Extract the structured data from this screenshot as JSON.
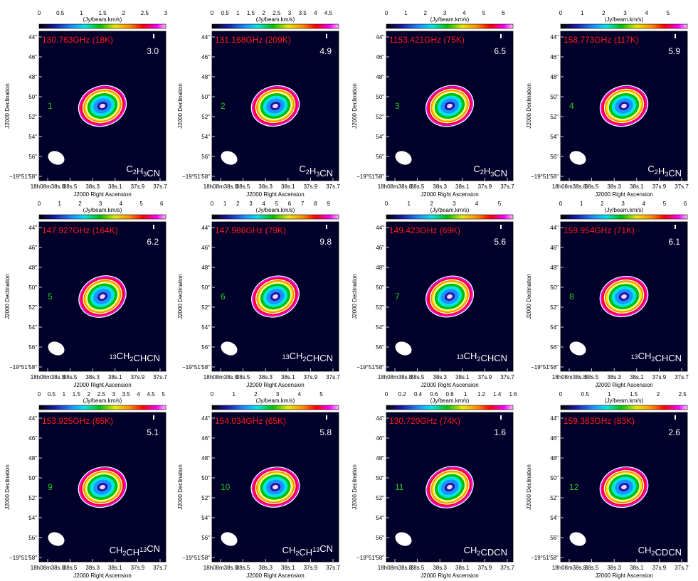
{
  "figure": {
    "cbar_unit": "(Jy/beam.km/s)",
    "xlabel": "J2000 Right Ascension",
    "ylabel": "J2000 Declination",
    "x_ticks": [
      "18h08m38s.8",
      "38s.5",
      "38s.3",
      "38s.1",
      "37s.9",
      "37s.7"
    ],
    "y_ticks": [
      "44\"",
      "46\"",
      "48\"",
      "50\"",
      "52\"",
      "54\"",
      "56\"",
      "−19°51′58\""
    ],
    "colors": {
      "frequency_text": "#ff1a1a",
      "panel_number": "#22cc22",
      "contour": "#ffffff",
      "map_background": "#00002a"
    }
  },
  "chart_data": [
    {
      "type": "heatmap",
      "panel": "1",
      "freq_label": "130.763GHz (18K)",
      "peak_label": "3.0",
      "molecule": [
        "C",
        "2",
        "H",
        "3",
        "CN"
      ],
      "mol_style": "sub",
      "colorbar_ticks": [
        "0",
        "0.5",
        "1",
        "1.5",
        "2",
        "2.5",
        "3"
      ],
      "vmax": 3.0,
      "colorbar_range": [
        0,
        3.0
      ]
    },
    {
      "type": "heatmap",
      "panel": "2",
      "freq_label": "131.168GHz (209K)",
      "peak_label": "4.9",
      "molecule": [
        "C",
        "2",
        "H",
        "3",
        "CN"
      ],
      "mol_style": "sub",
      "colorbar_ticks": [
        "0",
        "0.5",
        "1",
        "1.5",
        "2",
        "2.5",
        "3",
        "3.5",
        "4",
        "4.5"
      ],
      "vmax": 4.9,
      "colorbar_range": [
        0,
        4.9
      ]
    },
    {
      "type": "heatmap",
      "panel": "3",
      "freq_label": "1153.421GHz (75K)",
      "peak_label": "6.5",
      "molecule": [
        "C",
        "2",
        "H",
        "3",
        "CN"
      ],
      "mol_style": "sub",
      "colorbar_ticks": [
        "0",
        "1",
        "2",
        "3",
        "4",
        "5",
        "6"
      ],
      "vmax": 6.5,
      "colorbar_range": [
        0,
        6.5
      ]
    },
    {
      "type": "heatmap",
      "panel": "4",
      "freq_label": "158.773GHz (117K)",
      "peak_label": "5.9",
      "molecule": [
        "C",
        "2",
        "H",
        "3",
        "CN"
      ],
      "mol_style": "sub",
      "colorbar_ticks": [
        "0",
        "1",
        "2",
        "3",
        "4",
        "5"
      ],
      "vmax": 5.9,
      "colorbar_range": [
        0,
        5.9
      ]
    },
    {
      "type": "heatmap",
      "panel": "5",
      "freq_label": "147.927GHz (164K)",
      "peak_label": "6.2",
      "molecule": [
        "13",
        "CH",
        "2",
        "CHCN"
      ],
      "mol_style": "sup",
      "colorbar_ticks": [
        "0",
        "1",
        "2",
        "3",
        "4",
        "5",
        "6"
      ],
      "vmax": 6.2,
      "colorbar_range": [
        0,
        6.2
      ]
    },
    {
      "type": "heatmap",
      "panel": "6",
      "freq_label": "147.986GHz (79K)",
      "peak_label": "9.8",
      "molecule": [
        "13",
        "CH",
        "2",
        "CHCN"
      ],
      "mol_style": "sup",
      "colorbar_ticks": [
        "0",
        "1",
        "2",
        "3",
        "4",
        "5",
        "6",
        "7",
        "8",
        "9"
      ],
      "vmax": 9.8,
      "colorbar_range": [
        0,
        9.8
      ]
    },
    {
      "type": "heatmap",
      "panel": "7",
      "freq_label": "149.423GHz (69K)",
      "peak_label": "5.6",
      "molecule": [
        "13",
        "CH",
        "2",
        "CHCN"
      ],
      "mol_style": "sup",
      "colorbar_ticks": [
        "0",
        "1",
        "2",
        "3",
        "4",
        "5"
      ],
      "vmax": 5.6,
      "colorbar_range": [
        0,
        5.6
      ]
    },
    {
      "type": "heatmap",
      "panel": "8",
      "freq_label": "159.954GHz (71K)",
      "peak_label": "6.1",
      "molecule": [
        "13",
        "CH",
        "2",
        "CHCN"
      ],
      "mol_style": "sup",
      "colorbar_ticks": [
        "0",
        "1",
        "2",
        "3",
        "4",
        "5",
        "6"
      ],
      "vmax": 6.1,
      "colorbar_range": [
        0,
        6.1
      ]
    },
    {
      "type": "heatmap",
      "panel": "9",
      "freq_label": "153.925GHz (65K)",
      "peak_label": "5.1",
      "molecule": [
        "CH",
        "2",
        "CH",
        "13",
        "CN"
      ],
      "mol_style": "mix",
      "colorbar_ticks": [
        "0",
        "0.5",
        "1",
        "1.5",
        "2",
        "2.5",
        "3",
        "3.5",
        "4",
        "4.5",
        "5"
      ],
      "vmax": 5.1,
      "colorbar_range": [
        0,
        5.1
      ]
    },
    {
      "type": "heatmap",
      "panel": "10",
      "freq_label": "154.034GHz (65K)",
      "peak_label": "5.8",
      "molecule": [
        "CH",
        "2",
        "CH",
        "13",
        "CN"
      ],
      "mol_style": "mix",
      "colorbar_ticks": [
        "0",
        "1",
        "2",
        "3",
        "4",
        "5"
      ],
      "vmax": 5.8,
      "colorbar_range": [
        0,
        5.8
      ]
    },
    {
      "type": "heatmap",
      "panel": "11",
      "freq_label": "130.720GHz (74K)",
      "peak_label": "1.6",
      "molecule": [
        "CH",
        "2",
        "CDCN"
      ],
      "mol_style": "sub2",
      "colorbar_ticks": [
        "0",
        "0.2",
        "0.4",
        "0.6",
        "0.8",
        "1",
        "1.2",
        "1.4",
        "1.6"
      ],
      "vmax": 1.6,
      "colorbar_range": [
        0,
        1.6
      ]
    },
    {
      "type": "heatmap",
      "panel": "12",
      "freq_label": "159.383GHz (83K)",
      "peak_label": "2.6",
      "molecule": [
        "CH",
        "2",
        "CDCN"
      ],
      "mol_style": "sub2",
      "colorbar_ticks": [
        "0",
        "0.5",
        "1",
        "1.5",
        "2",
        "2.5"
      ],
      "vmax": 2.6,
      "colorbar_range": [
        0,
        2.6
      ]
    }
  ]
}
